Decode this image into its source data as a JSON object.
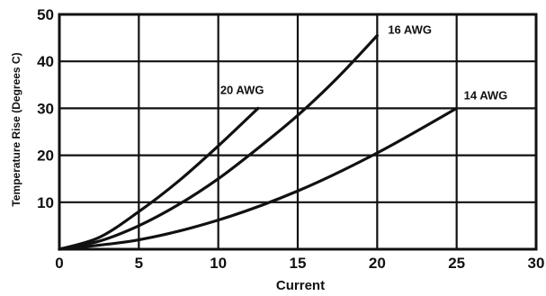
{
  "chart_data": {
    "type": "line",
    "title": "",
    "xlabel": "Current",
    "ylabel": "Temperature Rise (Degrees C)",
    "xlim": [
      0,
      30
    ],
    "ylim": [
      0,
      50
    ],
    "x_ticks": [
      "0",
      "5",
      "10",
      "15",
      "20",
      "25",
      "30"
    ],
    "y_ticks": [
      "10",
      "20",
      "30",
      "40",
      "50"
    ],
    "grid": true,
    "legend": "none (labels placed at line ends)",
    "line_color": "#111111",
    "series": [
      {
        "name": "20 AWG",
        "x": [
          0,
          2.5,
          5,
          7.5,
          10,
          12.5
        ],
        "y": [
          0,
          2.5,
          8,
          14.5,
          22,
          30
        ]
      },
      {
        "name": "16 AWG",
        "x": [
          0,
          2.5,
          5,
          7.5,
          10,
          12.5,
          15,
          17.5,
          20
        ],
        "y": [
          0,
          1.7,
          5,
          9.5,
          15,
          21.5,
          28.5,
          36.5,
          45.5
        ]
      },
      {
        "name": "14 AWG",
        "x": [
          0,
          5,
          10,
          15,
          20,
          25
        ],
        "y": [
          0,
          2,
          6.2,
          12.4,
          20.5,
          30
        ]
      }
    ]
  }
}
